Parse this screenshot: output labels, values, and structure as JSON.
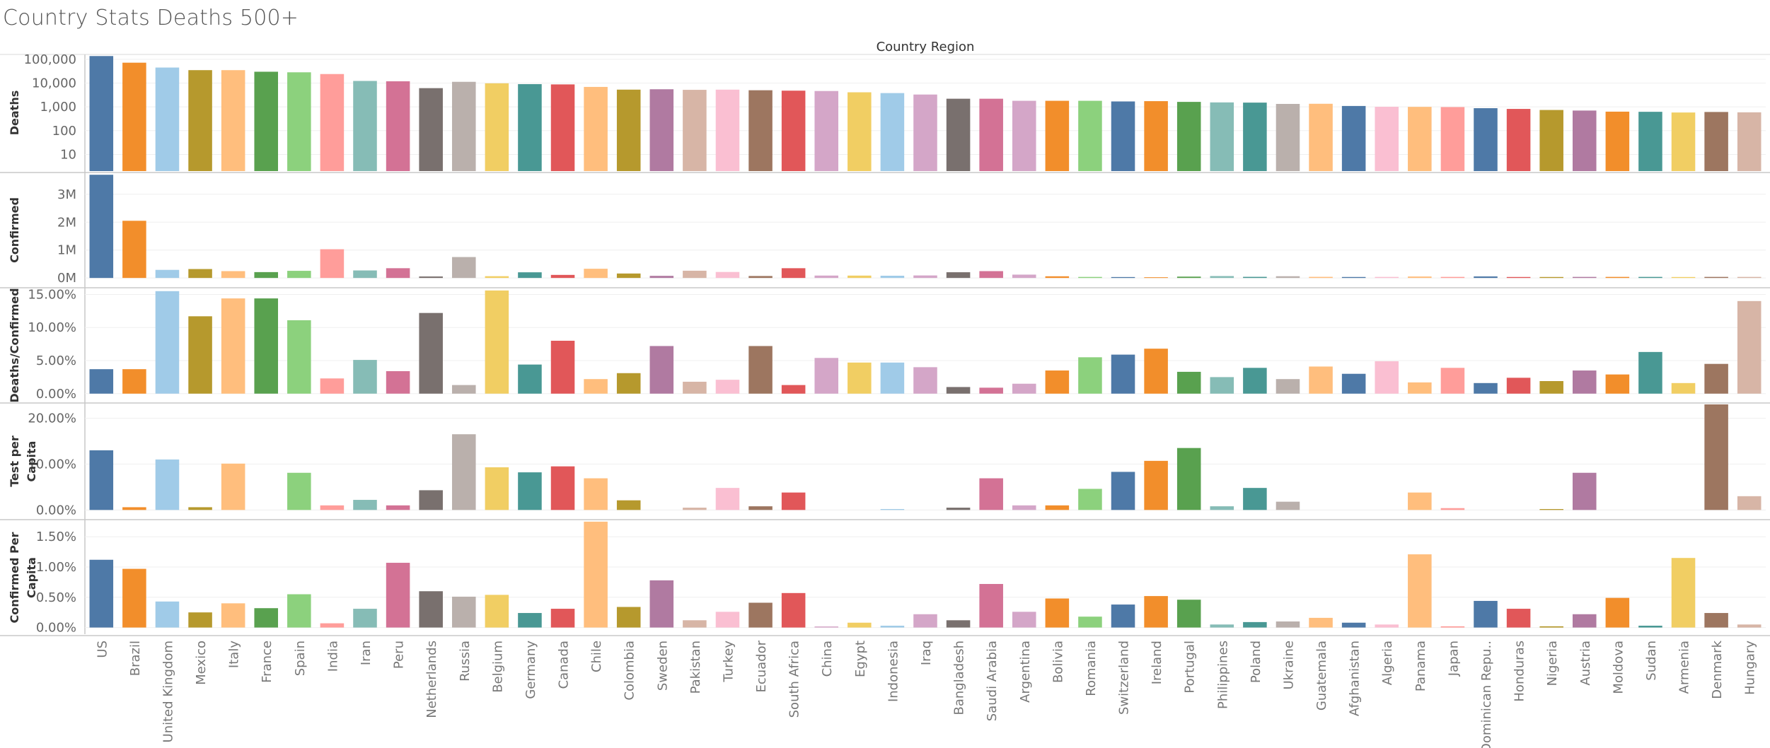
{
  "title": "Country Stats Deaths 500+",
  "column_header": "Country Region",
  "chart_data": {
    "type": "bar",
    "categories": [
      "US",
      "Brazil",
      "United Kingdom",
      "Mexico",
      "Italy",
      "France",
      "Spain",
      "India",
      "Iran",
      "Peru",
      "Netherlands",
      "Russia",
      "Belgium",
      "Germany",
      "Canada",
      "Chile",
      "Colombia",
      "Sweden",
      "Pakistan",
      "Turkey",
      "Ecuador",
      "South Africa",
      "China",
      "Egypt",
      "Indonesia",
      "Iraq",
      "Bangladesh",
      "Saudi Arabia",
      "Argentina",
      "Bolivia",
      "Romania",
      "Switzerland",
      "Ireland",
      "Portugal",
      "Philippines",
      "Poland",
      "Ukraine",
      "Guatemala",
      "Afghanistan",
      "Algeria",
      "Panama",
      "Japan",
      "Dominican Repu..",
      "Honduras",
      "Nigeria",
      "Austria",
      "Moldova",
      "Sudan",
      "Armenia",
      "Denmark",
      "Hungary"
    ],
    "colors": [
      "#4e79a7",
      "#f28e2b",
      "#a0cbe8",
      "#b6992d",
      "#ffbe7d",
      "#59a14f",
      "#8cd17d",
      "#ff9d9a",
      "#86bcb6",
      "#d37295",
      "#79706e",
      "#bab0ac",
      "#f1ce63",
      "#499894",
      "#e15759",
      "#ffbe7d",
      "#b6992d",
      "#b07aa1",
      "#d7b5a6",
      "#fabfd2",
      "#9d7660",
      "#e15759",
      "#d4a6c8",
      "#f1ce63",
      "#a0cbe8",
      "#d4a6c8",
      "#79706e",
      "#d37295",
      "#d4a6c8",
      "#f28e2b",
      "#8cd17d",
      "#4e79a7",
      "#f28e2b",
      "#59a14f",
      "#86bcb6",
      "#499894",
      "#bab0ac",
      "#ffbe7d",
      "#4e79a7",
      "#fabfd2",
      "#ffbe7d",
      "#ff9d9a",
      "#4e79a7",
      "#e15759",
      "#b6992d",
      "#b07aa1",
      "#f28e2b",
      "#499894",
      "#f1ce63",
      "#9d7660",
      "#d7b5a6"
    ],
    "rows": [
      {
        "label": "Deaths",
        "scale": "log",
        "ticks": [
          "100,000",
          "10,000",
          "1,000",
          "100",
          "10"
        ],
        "values": [
          137000,
          72000,
          45000,
          35000,
          35000,
          30000,
          28400,
          24000,
          12300,
          11900,
          6130,
          11300,
          9780,
          9050,
          8800,
          6900,
          5300,
          5500,
          5200,
          5300,
          5000,
          4800,
          4640,
          4100,
          3800,
          3300,
          2200,
          2200,
          1800,
          1800,
          1800,
          1690,
          1740,
          1620,
          1540,
          1510,
          1330,
          1350,
          1090,
          1010,
          1000,
          980,
          880,
          820,
          740,
          700,
          630,
          620,
          580,
          610,
          590
        ]
      },
      {
        "label": "Confirmed",
        "scale": "linear",
        "ticks": [
          "3M",
          "2M",
          "1M",
          "0M"
        ],
        "domain": [
          -300000,
          3730000
        ],
        "values": [
          3700000,
          2050000,
          290000,
          320000,
          245000,
          210000,
          256000,
          1030000,
          270000,
          350000,
          53000,
          750000,
          63000,
          203000,
          110000,
          330000,
          160000,
          76000,
          260000,
          215000,
          70000,
          350000,
          86000,
          85000,
          80000,
          90000,
          205000,
          245000,
          120000,
          60000,
          37000,
          33000,
          26000,
          48000,
          68000,
          40000,
          62000,
          40000,
          35000,
          22000,
          52000,
          25000,
          55000,
          35000,
          35000,
          20000,
          22000,
          11000,
          34000,
          14000,
          4400
        ]
      },
      {
        "label": "Deaths/Confirmed",
        "scale": "linear",
        "ticks": [
          "15.00%",
          "10.00%",
          "5.00%",
          "0.00%"
        ],
        "domain": [
          -1.2,
          15.8
        ],
        "values": [
          3.7,
          3.7,
          15.5,
          11.7,
          14.4,
          14.4,
          11.1,
          2.3,
          5.1,
          3.4,
          12.2,
          1.3,
          15.6,
          4.4,
          8.0,
          2.2,
          3.1,
          7.2,
          1.8,
          2.1,
          7.2,
          1.3,
          5.4,
          4.7,
          4.7,
          4.0,
          1.0,
          0.9,
          1.5,
          3.5,
          5.5,
          5.9,
          6.8,
          3.3,
          2.5,
          3.9,
          2.2,
          4.1,
          3.0,
          4.9,
          1.7,
          3.9,
          1.6,
          2.4,
          1.9,
          3.5,
          2.9,
          6.3,
          1.6,
          4.5,
          14.0
        ]
      },
      {
        "label": "Test per Capita",
        "scale": "linear",
        "ticks": [
          "20.00%",
          "10.00%",
          "0.00%"
        ],
        "domain": [
          -1.8,
          23.0
        ],
        "values": [
          13.0,
          0.6,
          11.0,
          0.6,
          10.1,
          0,
          8.1,
          1.0,
          2.2,
          1.0,
          4.3,
          16.5,
          9.3,
          8.2,
          9.5,
          6.9,
          2.1,
          0,
          0.5,
          4.8,
          0.8,
          3.8,
          0,
          0,
          0.2,
          0,
          0.5,
          6.9,
          1.0,
          1.0,
          4.6,
          8.3,
          10.7,
          13.5,
          0.8,
          4.8,
          1.8,
          0,
          0,
          0,
          3.8,
          0.4,
          0,
          0,
          0.2,
          8.1,
          0,
          0,
          0,
          23.0,
          3.0
        ]
      },
      {
        "label": "Confirmed Per Capita",
        "scale": "linear",
        "ticks": [
          "1.50%",
          "1.00%",
          "0.50%",
          "0.00%"
        ],
        "domain": [
          -0.11,
          1.76
        ],
        "values": [
          1.12,
          0.97,
          0.43,
          0.25,
          0.4,
          0.32,
          0.55,
          0.07,
          0.31,
          1.07,
          0.6,
          0.51,
          0.54,
          0.24,
          0.31,
          1.75,
          0.34,
          0.78,
          0.12,
          0.26,
          0.41,
          0.57,
          0.01,
          0.08,
          0.03,
          0.22,
          0.12,
          0.72,
          0.26,
          0.48,
          0.18,
          0.38,
          0.52,
          0.46,
          0.05,
          0.09,
          0.1,
          0.16,
          0.08,
          0.05,
          1.21,
          0.02,
          0.44,
          0.31,
          0.02,
          0.22,
          0.49,
          0.03,
          1.15,
          0.24,
          0.05
        ]
      }
    ]
  }
}
